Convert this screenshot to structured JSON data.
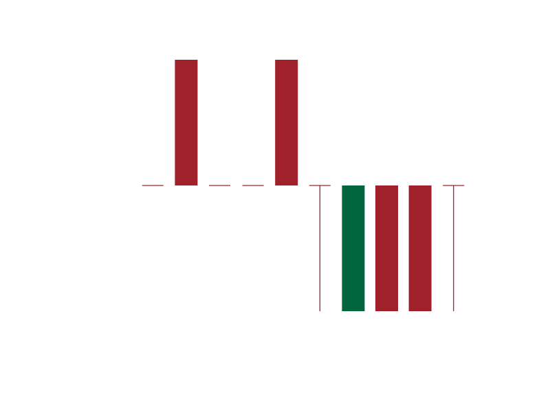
{
  "chart_data": {
    "type": "bar",
    "title": "",
    "xlabel": "",
    "ylabel": "",
    "grid": false,
    "legend": "none",
    "ylim": [
      -1,
      1
    ],
    "categories": [
      "",
      "",
      "",
      "",
      "",
      "",
      "",
      "",
      "",
      ""
    ],
    "values": [
      0,
      1,
      0,
      0,
      1,
      -1,
      -1,
      -1,
      -1,
      -1
    ],
    "bar_styles": [
      "flat",
      "bar",
      "flat",
      "flat",
      "bar",
      "line",
      "bar",
      "bar",
      "bar",
      "line"
    ],
    "colors": [
      "#a0212a",
      "#a0212a",
      "#a0212a",
      "#a0212a",
      "#a0212a",
      "#a0212a",
      "#00643c",
      "#a0212a",
      "#a0212a",
      "#a0212a"
    ]
  },
  "colors": {
    "negative": "#a0212a",
    "positive": "#00643c",
    "background": "#ffffff"
  }
}
